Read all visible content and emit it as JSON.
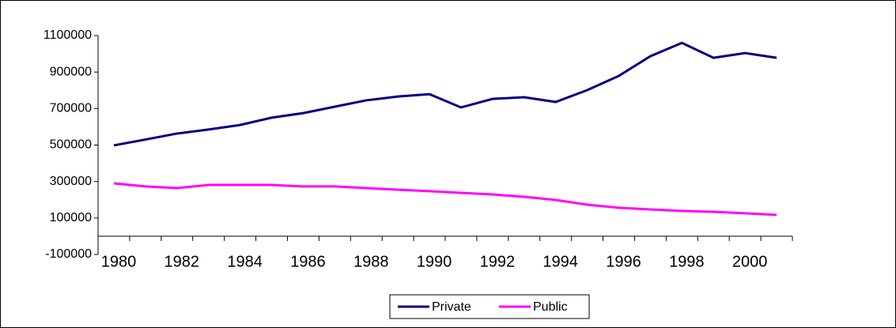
{
  "chart_data": {
    "type": "line",
    "categories": [
      1980,
      null,
      1982,
      null,
      1984,
      null,
      1986,
      null,
      1988,
      null,
      1990,
      null,
      1992,
      null,
      1994,
      null,
      1996,
      null,
      1998,
      null,
      2000,
      null
    ],
    "series": [
      {
        "name": "Private",
        "color": "#000080",
        "values": [
          498000,
          530000,
          563000,
          585000,
          610000,
          650000,
          675000,
          710000,
          745000,
          766000,
          779000,
          706000,
          753000,
          762000,
          736000,
          801000,
          879000,
          987000,
          1060000,
          978000,
          1004000,
          978000
        ]
      },
      {
        "name": "Public",
        "color": "#ff00ff",
        "values": [
          290000,
          273000,
          264000,
          281000,
          281000,
          281000,
          273000,
          273000,
          264000,
          255000,
          247000,
          238000,
          229000,
          216000,
          199000,
          173000,
          156000,
          147000,
          139000,
          134000,
          126000,
          117000
        ]
      }
    ],
    "ylim": [
      -100000,
      1100000
    ],
    "yticks": [
      -100000,
      100000,
      300000,
      500000,
      700000,
      900000,
      1100000
    ],
    "grid": false,
    "legend": "bottom"
  }
}
